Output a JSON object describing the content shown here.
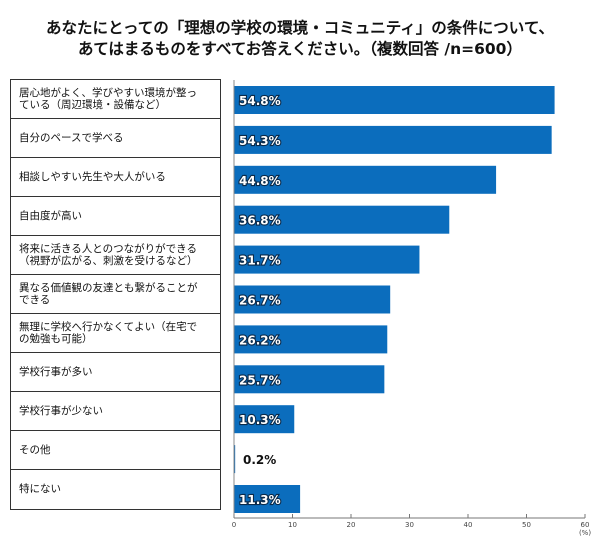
{
  "chart_data": {
    "type": "bar",
    "orientation": "horizontal",
    "title": "あなたにとっての「理想の学校の環境・コミュニティ」の条件について、\nあてはまるものをすべてお答えください。（複数回答 /n=600）",
    "categories": [
      "居心地がよく、学びやすい環境が整っている（周辺環境・設備など）",
      "自分のペースで学べる",
      "相談しやすい先生や大人がいる",
      "自由度が高い",
      "将来に活きる人とのつながりができる（視野が広がる、刺激を受けるなど）",
      "異なる価値観の友達とも繋がることができる",
      "無理に学校へ行かなくてよい（在宅での勉強も可能）",
      "学校行事が多い",
      "学校行事が少ない",
      "その他",
      "特にない"
    ],
    "category_display": [
      "居心地がよく、学びやすい環境が整っ\nている（周辺環境・設備など）",
      "自分のペースで学べる",
      "相談しやすい先生や大人がいる",
      "自由度が高い",
      "将来に活きる人とのつながりができる\n（視野が広がる、刺激を受けるなど）",
      "異なる価値観の友達とも繋がることが\nできる",
      "無理に学校へ行かなくてよい（在宅で\nの勉強も可能）",
      "学校行事が多い",
      "学校行事が少ない",
      "その他",
      "特にない"
    ],
    "values": [
      54.8,
      54.3,
      44.8,
      36.8,
      31.7,
      26.7,
      26.2,
      25.7,
      10.3,
      0.2,
      11.3
    ],
    "data_labels": [
      "54.8%",
      "54.3%",
      "44.8%",
      "36.8%",
      "31.7%",
      "26.7%",
      "26.2%",
      "25.7%",
      "10.3%",
      "0.2%",
      "11.3%"
    ],
    "xlim": [
      0,
      60
    ],
    "xticks": [
      "0",
      "10",
      "20",
      "30",
      "40",
      "50",
      "60"
    ],
    "xunit": "(%)",
    "grid": false,
    "bar_color": "#0b6dbd"
  }
}
